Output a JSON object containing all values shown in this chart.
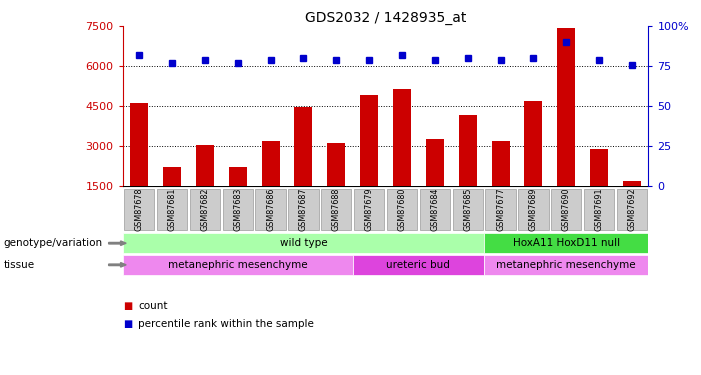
{
  "title": "GDS2032 / 1428935_at",
  "samples": [
    "GSM87678",
    "GSM87681",
    "GSM87682",
    "GSM87683",
    "GSM87686",
    "GSM87687",
    "GSM87688",
    "GSM87679",
    "GSM87680",
    "GSM87684",
    "GSM87685",
    "GSM87677",
    "GSM87689",
    "GSM87690",
    "GSM87691",
    "GSM87692"
  ],
  "counts": [
    4600,
    2200,
    3050,
    2200,
    3200,
    4450,
    3100,
    4900,
    5150,
    3250,
    4150,
    3200,
    4700,
    7450,
    2900,
    1700
  ],
  "percentiles": [
    82,
    77,
    79,
    77,
    79,
    80,
    79,
    79,
    82,
    79,
    80,
    79,
    80,
    90,
    79,
    76
  ],
  "ylim_left": [
    1500,
    7500
  ],
  "ylim_right": [
    0,
    100
  ],
  "yticks_left": [
    1500,
    3000,
    4500,
    6000,
    7500
  ],
  "yticks_right": [
    0,
    25,
    50,
    75,
    100
  ],
  "bar_color": "#cc0000",
  "dot_color": "#0000cc",
  "grid_color": "#000000",
  "genotype_groups": [
    {
      "label": "wild type",
      "start": 0,
      "end": 10,
      "color": "#aaffaa"
    },
    {
      "label": "HoxA11 HoxD11 null",
      "start": 11,
      "end": 15,
      "color": "#44dd44"
    }
  ],
  "tissue_groups": [
    {
      "label": "metanephric mesenchyme",
      "start": 0,
      "end": 6,
      "color": "#ee88ee"
    },
    {
      "label": "ureteric bud",
      "start": 7,
      "end": 10,
      "color": "#dd44dd"
    },
    {
      "label": "metanephric mesenchyme",
      "start": 11,
      "end": 15,
      "color": "#ee88ee"
    }
  ],
  "left_label_color": "#cc0000",
  "right_label_color": "#0000cc",
  "background_color": "#ffffff",
  "tick_bg_color": "#cccccc",
  "tick_border_color": "#888888"
}
